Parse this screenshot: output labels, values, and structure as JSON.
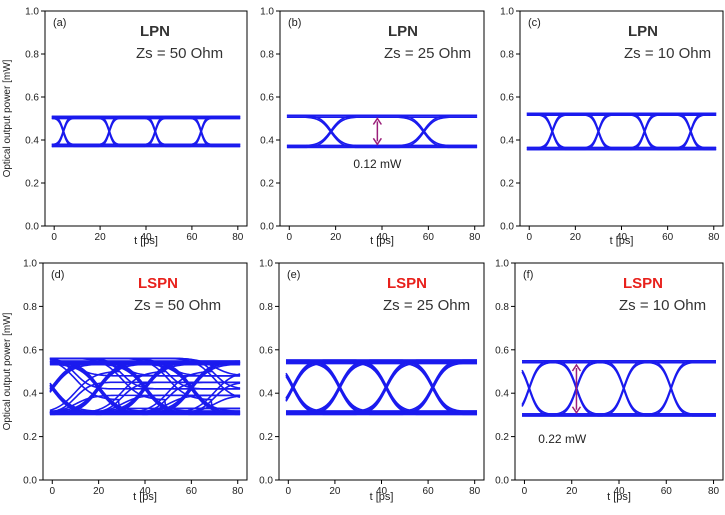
{
  "colors": {
    "trace": "#1a1aee",
    "arrow": "#9b1f7a",
    "lpn_title": "#333333",
    "lspn_title": "#e8211c"
  },
  "chart_data": [
    {
      "id": "a",
      "type": "line",
      "panel_label": "(a)",
      "title": "LPN",
      "subtitle": "Zs = 50 Ohm",
      "title_color": "#333333",
      "xlabel": "t [ps]",
      "ylabel": "Optical output power [mW]",
      "xlim": [
        -4,
        84
      ],
      "ylim": [
        0,
        1.0
      ],
      "xticks": [
        0,
        20,
        40,
        60,
        80
      ],
      "yticks": [
        0.0,
        0.2,
        0.4,
        0.6,
        0.8,
        1.0
      ],
      "eye_levels": [
        0.375,
        0.505
      ],
      "crossing_times": [
        4,
        24,
        44,
        64
      ],
      "transition_width_ps": 9,
      "annotation": null
    },
    {
      "id": "b",
      "type": "line",
      "panel_label": "(b)",
      "title": "LPN",
      "subtitle": "Zs = 25 Ohm",
      "title_color": "#333333",
      "xlabel": "t [ps]",
      "ylabel": "",
      "xlim": [
        -4,
        84
      ],
      "ylim": [
        0,
        1.0
      ],
      "xticks": [
        0,
        20,
        40,
        60,
        80
      ],
      "yticks": [
        0.0,
        0.2,
        0.4,
        0.6,
        0.8,
        1.0
      ],
      "eye_levels": [
        0.37,
        0.51
      ],
      "crossing_times": [
        18,
        58
      ],
      "transition_width_ps": 22,
      "annotation": {
        "text": "0.12 mW",
        "x": 38,
        "y_low": 0.38,
        "y_high": 0.5,
        "text_x": 38,
        "text_y": 0.27
      }
    },
    {
      "id": "c",
      "type": "line",
      "panel_label": "(c)",
      "title": "LPN",
      "subtitle": "Zs = 10 Ohm",
      "title_color": "#333333",
      "xlabel": "t [ps]",
      "ylabel": "",
      "xlim": [
        -4,
        84
      ],
      "ylim": [
        0,
        1.0
      ],
      "xticks": [
        0,
        20,
        40,
        60,
        80
      ],
      "yticks": [
        0.0,
        0.2,
        0.4,
        0.6,
        0.8,
        1.0
      ],
      "eye_levels": [
        0.36,
        0.52
      ],
      "crossing_times": [
        10,
        30,
        50,
        70
      ],
      "transition_width_ps": 12,
      "annotation": null
    },
    {
      "id": "d",
      "type": "line",
      "panel_label": "(d)",
      "title": "LSPN",
      "subtitle": "Zs = 50 Ohm",
      "title_color": "#e8211c",
      "xlabel": "t [ps]",
      "ylabel": "Optical output power [mW]",
      "xlim": [
        -4,
        84
      ],
      "ylim": [
        0,
        1.0
      ],
      "xticks": [
        0,
        20,
        40,
        60,
        80
      ],
      "yticks": [
        0.0,
        0.2,
        0.4,
        0.6,
        0.8,
        1.0
      ],
      "eye_levels": [
        0.31,
        0.54
      ],
      "crossing_times": [
        0,
        20,
        40,
        60
      ],
      "transition_width_ps": 38,
      "annotation": null
    },
    {
      "id": "e",
      "type": "line",
      "panel_label": "(e)",
      "title": "LSPN",
      "subtitle": "Zs = 25 Ohm",
      "title_color": "#e8211c",
      "xlabel": "t [ps]",
      "ylabel": "",
      "xlim": [
        -4,
        84
      ],
      "ylim": [
        0,
        1.0
      ],
      "xticks": [
        0,
        20,
        40,
        60,
        80
      ],
      "yticks": [
        0.0,
        0.2,
        0.4,
        0.6,
        0.8,
        1.0
      ],
      "eye_levels": [
        0.31,
        0.545
      ],
      "crossing_times": [
        2,
        22,
        42,
        62
      ],
      "transition_width_ps": 26,
      "annotation": null
    },
    {
      "id": "f",
      "type": "line",
      "panel_label": "(f)",
      "title": "LSPN",
      "subtitle": "Zs = 10 Ohm",
      "title_color": "#e8211c",
      "xlabel": "t [ps]",
      "ylabel": "",
      "xlim": [
        -4,
        84
      ],
      "ylim": [
        0,
        1.0
      ],
      "xticks": [
        0,
        20,
        40,
        60,
        80
      ],
      "yticks": [
        0.0,
        0.2,
        0.4,
        0.6,
        0.8,
        1.0
      ],
      "eye_levels": [
        0.3,
        0.545
      ],
      "crossing_times": [
        2,
        22,
        42,
        62
      ],
      "transition_width_ps": 18,
      "annotation": {
        "text": "0.22 mW",
        "x": 22,
        "y_low": 0.31,
        "y_high": 0.53,
        "text_x": 16,
        "text_y": 0.17
      }
    }
  ]
}
